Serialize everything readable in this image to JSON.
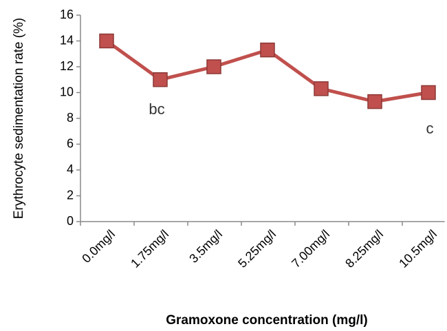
{
  "chart_data": {
    "type": "line",
    "x_label": "Gramoxone concentration (mg/l)",
    "y_label": "Erythrocyte sedimentation rate (%)",
    "categories": [
      "0.0mg/l",
      "1.75mg/l",
      "3.5mg/l",
      "5.25mg/l",
      "7.00mg/l",
      "8.25mg/l",
      "10.5mg/l"
    ],
    "values": [
      14,
      11,
      12,
      13.3,
      10.3,
      9.3,
      10
    ],
    "color": "#c0504d",
    "ylim": [
      0,
      16
    ],
    "yticks": [
      0,
      2,
      4,
      6,
      8,
      10,
      12,
      14,
      16
    ],
    "annotations": [
      "bc",
      "c"
    ]
  }
}
